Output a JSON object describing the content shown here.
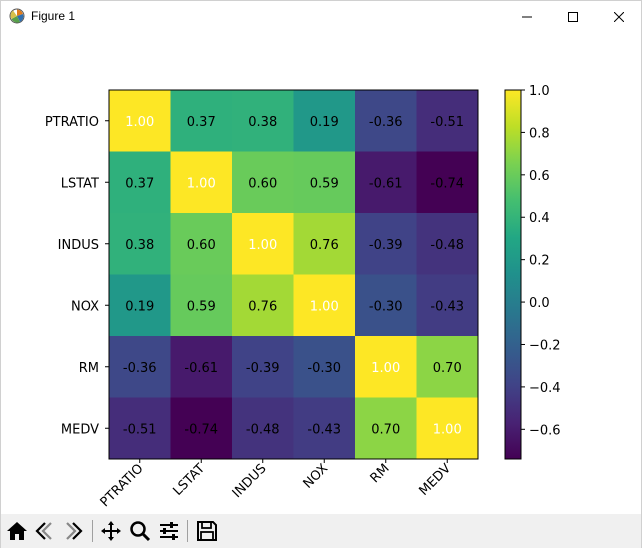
{
  "window": {
    "title": "Figure 1"
  },
  "chart_data": {
    "type": "heatmap",
    "title": "",
    "row_labels": [
      "PTRATIO",
      "LSTAT",
      "INDUS",
      "NOX",
      "RM",
      "MEDV"
    ],
    "col_labels": [
      "PTRATIO",
      "LSTAT",
      "INDUS",
      "NOX",
      "RM",
      "MEDV"
    ],
    "values": [
      [
        1.0,
        0.37,
        0.38,
        0.19,
        -0.36,
        -0.51
      ],
      [
        0.37,
        1.0,
        0.6,
        0.59,
        -0.61,
        -0.74
      ],
      [
        0.38,
        0.6,
        1.0,
        0.76,
        -0.39,
        -0.48
      ],
      [
        0.19,
        0.59,
        0.76,
        1.0,
        -0.3,
        -0.43
      ],
      [
        -0.36,
        -0.61,
        -0.39,
        -0.3,
        1.0,
        0.7
      ],
      [
        -0.51,
        -0.74,
        -0.48,
        -0.43,
        0.7,
        1.0
      ]
    ],
    "value_labels": [
      [
        "1.00",
        "0.37",
        "0.38",
        "0.19",
        "-0.36",
        "-0.51"
      ],
      [
        "0.37",
        "1.00",
        "0.60",
        "0.59",
        "-0.61",
        "-0.74"
      ],
      [
        "0.38",
        "0.60",
        "1.00",
        "0.76",
        "-0.39",
        "-0.48"
      ],
      [
        "0.19",
        "0.59",
        "0.76",
        "1.00",
        "-0.30",
        "-0.43"
      ],
      [
        "-0.36",
        "-0.61",
        "-0.39",
        "-0.30",
        "1.00",
        "0.70"
      ],
      [
        "-0.51",
        "-0.74",
        "-0.48",
        "-0.43",
        "0.70",
        "1.00"
      ]
    ],
    "colormap": "viridis",
    "vmin": -0.74,
    "vmax": 1.0,
    "colorbar_ticks": [
      1.0,
      0.8,
      0.6,
      0.4,
      0.2,
      0.0,
      -0.2,
      -0.4,
      -0.6
    ],
    "colorbar_tick_labels": [
      "1.0",
      "0.8",
      "0.6",
      "0.4",
      "0.2",
      "0.0",
      "−0.2",
      "−0.4",
      "−0.6"
    ],
    "colorbar_location": "right",
    "x_tick_rotation_deg": 45
  },
  "toolbar": {
    "buttons": [
      "home",
      "back",
      "forward",
      "pan",
      "zoom",
      "configure-subplots",
      "save"
    ]
  }
}
